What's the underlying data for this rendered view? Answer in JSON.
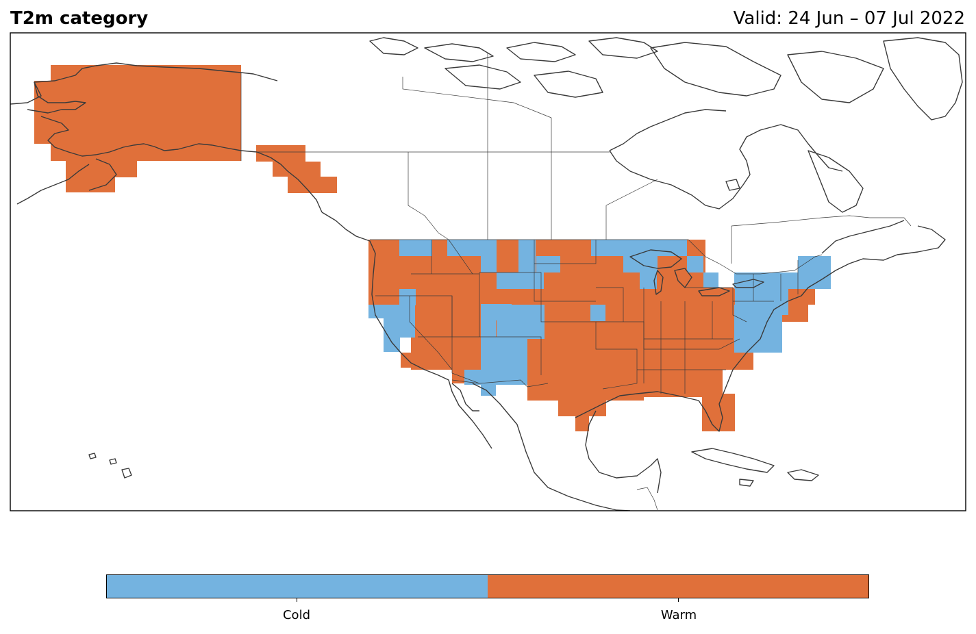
{
  "header": {
    "title": "T2m category",
    "valid_text": "Valid: 24 Jun – 07 Jul 2022"
  },
  "legend": {
    "categories": [
      {
        "label": "Cold",
        "color": "#74b3e0"
      },
      {
        "label": "Warm",
        "color": "#e0703a"
      }
    ]
  },
  "colors": {
    "coastline": "#3a3a3a",
    "frame": "#000000"
  }
}
